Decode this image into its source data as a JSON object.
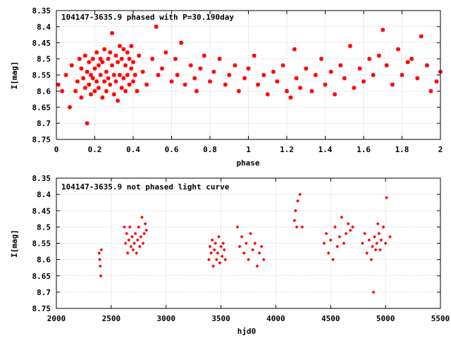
{
  "colors": {
    "points": "#ff0000",
    "axes": "#000000",
    "grid": "#a0a0a0"
  },
  "chart_data": [
    {
      "type": "scatter",
      "title": "104147-3635.9 phased with P=30.190day",
      "xlabel": "phase",
      "ylabel": "I[mag]",
      "xlim": [
        0,
        2
      ],
      "ylim": [
        8.35,
        8.75
      ],
      "y_inverted": true,
      "grid": true,
      "marker": "star",
      "xticks": [
        0,
        0.2,
        0.4,
        0.6,
        0.8,
        1,
        1.2,
        1.4,
        1.6,
        1.8,
        2
      ],
      "yticks": [
        8.35,
        8.4,
        8.45,
        8.5,
        8.55,
        8.6,
        8.65,
        8.7,
        8.75
      ],
      "series": [
        {
          "x": [
            0.01,
            0.03,
            0.05,
            0.07,
            0.08,
            0.1,
            0.11,
            0.12,
            0.13,
            0.13,
            0.14,
            0.15,
            0.15,
            0.16,
            0.16,
            0.17,
            0.17,
            0.18,
            0.18,
            0.19,
            0.19,
            0.2,
            0.2,
            0.21,
            0.21,
            0.22,
            0.22,
            0.23,
            0.23,
            0.24,
            0.24,
            0.25,
            0.25,
            0.26,
            0.26,
            0.27,
            0.27,
            0.28,
            0.28,
            0.29,
            0.29,
            0.3,
            0.3,
            0.31,
            0.31,
            0.32,
            0.32,
            0.33,
            0.33,
            0.34,
            0.34,
            0.35,
            0.35,
            0.36,
            0.36,
            0.37,
            0.37,
            0.38,
            0.38,
            0.39,
            0.39,
            0.4,
            0.4,
            0.41,
            0.42,
            0.43,
            0.45,
            0.47,
            0.5,
            0.52,
            0.53,
            0.55,
            0.57,
            0.6,
            0.62,
            0.63,
            0.65,
            0.67,
            0.7,
            0.72,
            0.73,
            0.75,
            0.77,
            0.8,
            0.82,
            0.85,
            0.88,
            0.9,
            0.93,
            0.95,
            0.98,
            1.0,
            1.03,
            1.05,
            1.08,
            1.1,
            1.13,
            1.15,
            1.18,
            1.2,
            1.22,
            1.24,
            1.25,
            1.27,
            1.3,
            1.33,
            1.35,
            1.38,
            1.4,
            1.43,
            1.45,
            1.48,
            1.5,
            1.53,
            1.55,
            1.58,
            1.6,
            1.63,
            1.65,
            1.68,
            1.7,
            1.72,
            1.75,
            1.78,
            1.8,
            1.83,
            1.85,
            1.88,
            1.9,
            1.93,
            1.95,
            1.98,
            2.0
          ],
          "y": [
            8.58,
            8.6,
            8.55,
            8.65,
            8.52,
            8.6,
            8.57,
            8.5,
            8.62,
            8.53,
            8.56,
            8.49,
            8.59,
            8.54,
            8.7,
            8.51,
            8.58,
            8.55,
            8.61,
            8.5,
            8.56,
            8.53,
            8.6,
            8.48,
            8.57,
            8.52,
            8.59,
            8.5,
            8.55,
            8.62,
            8.51,
            8.57,
            8.47,
            8.54,
            8.6,
            8.5,
            8.56,
            8.48,
            8.58,
            8.52,
            8.42,
            8.55,
            8.61,
            8.49,
            8.57,
            8.51,
            8.63,
            8.46,
            8.55,
            8.59,
            8.5,
            8.47,
            8.56,
            8.52,
            8.6,
            8.48,
            8.55,
            8.5,
            8.58,
            8.53,
            8.46,
            8.57,
            8.51,
            8.55,
            8.6,
            8.49,
            8.54,
            8.58,
            8.5,
            8.4,
            8.55,
            8.53,
            8.48,
            8.57,
            8.5,
            8.55,
            8.45,
            8.58,
            8.52,
            8.56,
            8.6,
            8.53,
            8.49,
            8.57,
            8.54,
            8.5,
            8.58,
            8.55,
            8.52,
            8.6,
            8.56,
            8.53,
            8.49,
            8.58,
            8.55,
            8.61,
            8.54,
            8.57,
            8.52,
            8.6,
            8.62,
            8.47,
            8.56,
            8.59,
            8.53,
            8.6,
            8.55,
            8.5,
            8.58,
            8.54,
            8.61,
            8.52,
            8.56,
            8.46,
            8.59,
            8.53,
            8.57,
            8.5,
            8.55,
            8.49,
            8.41,
            8.52,
            8.58,
            8.47,
            8.55,
            8.51,
            8.5,
            8.56,
            8.43,
            8.52,
            8.6,
            8.57,
            8.54
          ]
        }
      ]
    },
    {
      "type": "scatter",
      "title": "104147-3635.9 not phased light curve",
      "xlabel": "hjd0",
      "ylabel": "I[mag]",
      "xlim": [
        2000,
        5500
      ],
      "ylim": [
        8.35,
        8.75
      ],
      "y_inverted": true,
      "grid": true,
      "marker": "diamond",
      "xticks": [
        2000,
        2500,
        3000,
        3500,
        4000,
        4500,
        5000,
        5500
      ],
      "yticks": [
        8.35,
        8.4,
        8.45,
        8.5,
        8.55,
        8.6,
        8.65,
        8.7,
        8.75
      ],
      "series": [
        {
          "x": [
            2390,
            2395,
            2400,
            2405,
            2410,
            2620,
            2630,
            2640,
            2650,
            2660,
            2670,
            2680,
            2690,
            2700,
            2710,
            2720,
            2730,
            2740,
            2750,
            2760,
            2770,
            2780,
            2790,
            2800,
            2810,
            2820,
            3390,
            3400,
            3410,
            3420,
            3430,
            3440,
            3450,
            3460,
            3470,
            3480,
            3490,
            3500,
            3510,
            3520,
            3530,
            3540,
            3650,
            3670,
            3690,
            3710,
            3730,
            3750,
            3770,
            3790,
            3810,
            3830,
            3850,
            3870,
            3890,
            4170,
            4180,
            4190,
            4200,
            4220,
            4240,
            4440,
            4460,
            4480,
            4500,
            4520,
            4540,
            4560,
            4580,
            4600,
            4620,
            4640,
            4660,
            4680,
            4700,
            4790,
            4810,
            4830,
            4850,
            4870,
            4880,
            4890,
            4900,
            4910,
            4920,
            4930,
            4940,
            4950,
            4960,
            4980,
            5000,
            5010,
            5040
          ],
          "y": [
            8.58,
            8.6,
            8.62,
            8.65,
            8.57,
            8.5,
            8.55,
            8.52,
            8.58,
            8.54,
            8.5,
            8.56,
            8.53,
            8.57,
            8.55,
            8.52,
            8.58,
            8.54,
            8.5,
            8.56,
            8.53,
            8.47,
            8.55,
            8.52,
            8.49,
            8.51,
            8.6,
            8.56,
            8.58,
            8.54,
            8.62,
            8.57,
            8.55,
            8.6,
            8.58,
            8.53,
            8.61,
            8.56,
            8.59,
            8.55,
            8.57,
            8.6,
            8.5,
            8.56,
            8.53,
            8.58,
            8.55,
            8.6,
            8.52,
            8.57,
            8.55,
            8.62,
            8.58,
            8.56,
            8.6,
            8.48,
            8.45,
            8.5,
            8.42,
            8.4,
            8.5,
            8.55,
            8.52,
            8.58,
            8.54,
            8.6,
            8.5,
            8.56,
            8.53,
            8.47,
            8.55,
            8.52,
            8.49,
            8.51,
            8.5,
            8.55,
            8.52,
            8.58,
            8.54,
            8.6,
            8.56,
            8.7,
            8.53,
            8.57,
            8.55,
            8.49,
            8.52,
            8.57,
            8.54,
            8.5,
            8.55,
            8.41,
            8.53
          ]
        }
      ]
    }
  ]
}
